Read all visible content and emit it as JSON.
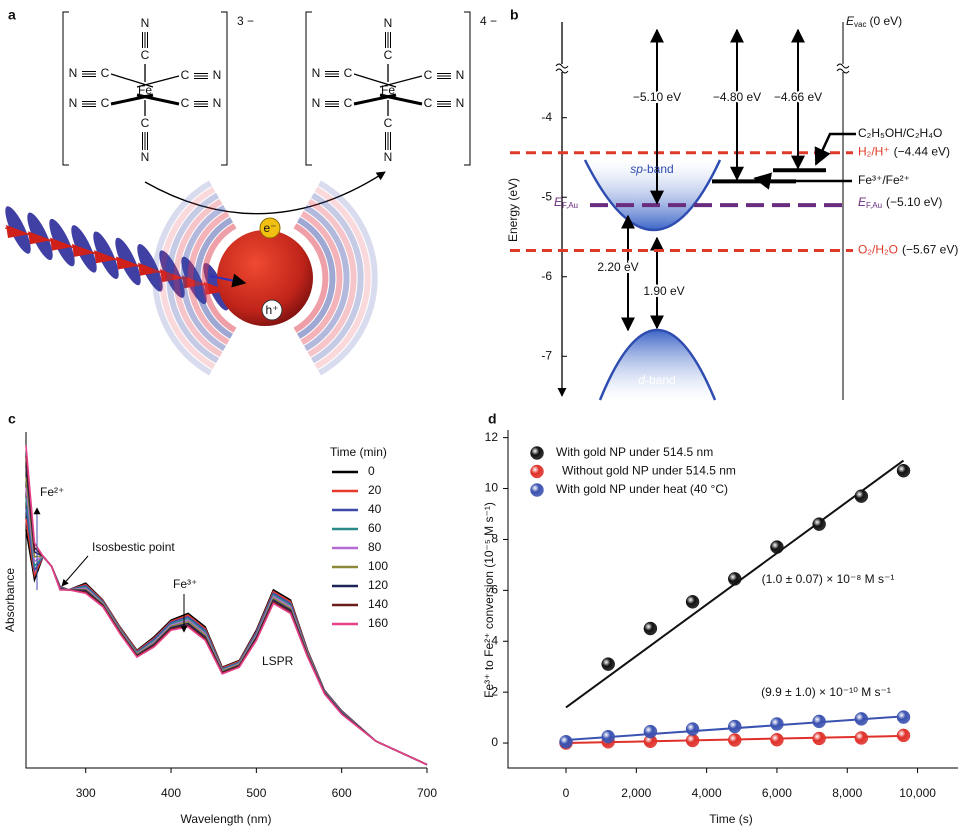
{
  "figure": {
    "panel_labels": [
      "a",
      "b",
      "c",
      "d"
    ]
  },
  "diagram": {
    "charges": [
      "3 −",
      "4 −"
    ],
    "nitrogen": "N",
    "carbon": "C",
    "iron": "Fe",
    "electron": "e⁻",
    "hole": "h⁺"
  },
  "chart_data": [
    {
      "type": "energy",
      "ylabel": "Energy (eV)",
      "ylim": [
        -7.55,
        -3.4
      ],
      "yticks": [
        -4,
        -5,
        -6,
        -7
      ],
      "vacuum": {
        "symbol": "E",
        "sub": "vac",
        "label": "(0 eV)"
      },
      "fermi": {
        "symbol": "E",
        "sub": "F,Au",
        "label": "(−5.10 eV)",
        "value": -5.1,
        "color": "#6a2c7e"
      },
      "redox": [
        {
          "name": "H₂/H⁺",
          "label": "(−4.44 eV)",
          "value": -4.44,
          "color": "#e03a2a"
        },
        {
          "name": "O₂/H₂O",
          "label": "(−5.67 eV)",
          "value": -5.67,
          "color": "#e03a2a"
        }
      ],
      "levels": [
        {
          "name": "C₂H₅OH/C₂H₄O",
          "value": -4.66
        },
        {
          "name": "Fe³⁺/Fe²⁺",
          "value": -4.8
        }
      ],
      "gaps": [
        {
          "value": -5.1,
          "label": "−5.10 eV"
        },
        {
          "value": -4.8,
          "label": "−4.80 eV"
        },
        {
          "value": -4.66,
          "label": "−4.66 eV"
        }
      ],
      "band_gaps": [
        {
          "value": 2.2,
          "label": "2.20 eV"
        },
        {
          "value": 1.9,
          "label": "1.90 eV"
        }
      ],
      "bands": {
        "sp": "sp",
        "d": "d",
        "suffix": "-band"
      }
    },
    {
      "type": "line",
      "xlabel": "Wavelength (nm)",
      "ylabel": "Absorbance",
      "legend_title": "Time (min)",
      "xlim": [
        230,
        700
      ],
      "ylim": [
        0,
        1
      ],
      "xticks": [
        300,
        400,
        500,
        600,
        700
      ],
      "x": [
        230,
        240,
        250,
        260,
        270,
        280,
        300,
        320,
        340,
        360,
        380,
        400,
        420,
        440,
        460,
        480,
        500,
        520,
        540,
        560,
        580,
        600,
        640,
        700
      ],
      "annotations": [
        "Fe²⁺",
        "Isosbestic point",
        "Fe³⁺",
        "LSPR"
      ],
      "series": [
        {
          "name": "0",
          "color": "#000000",
          "values": [
            0.71,
            0.56,
            0.63,
            0.6,
            0.54,
            0.53,
            0.55,
            0.5,
            0.42,
            0.35,
            0.39,
            0.44,
            0.46,
            0.42,
            0.3,
            0.32,
            0.41,
            0.53,
            0.5,
            0.35,
            0.23,
            0.17,
            0.08,
            0.01
          ]
        },
        {
          "name": "20",
          "color": "#e8392c",
          "values": [
            0.741,
            0.574,
            0.63,
            0.6,
            0.539,
            0.53,
            0.546,
            0.498,
            0.418,
            0.348,
            0.386,
            0.436,
            0.455,
            0.415,
            0.298,
            0.318,
            0.406,
            0.525,
            0.495,
            0.348,
            0.229,
            0.169,
            0.08,
            0.01
          ]
        },
        {
          "name": "40",
          "color": "#3f4aa8",
          "values": [
            0.773,
            0.588,
            0.63,
            0.6,
            0.538,
            0.53,
            0.543,
            0.495,
            0.415,
            0.345,
            0.383,
            0.433,
            0.45,
            0.41,
            0.295,
            0.315,
            0.403,
            0.52,
            0.49,
            0.345,
            0.228,
            0.168,
            0.08,
            0.01
          ]
        },
        {
          "name": "60",
          "color": "#2a8a8a",
          "values": [
            0.804,
            0.601,
            0.63,
            0.6,
            0.536,
            0.53,
            0.539,
            0.493,
            0.413,
            0.343,
            0.379,
            0.429,
            0.445,
            0.405,
            0.293,
            0.313,
            0.399,
            0.515,
            0.485,
            0.343,
            0.226,
            0.166,
            0.08,
            0.01
          ]
        },
        {
          "name": "80",
          "color": "#b36ad1",
          "values": [
            0.835,
            0.615,
            0.63,
            0.6,
            0.535,
            0.53,
            0.535,
            0.49,
            0.41,
            0.34,
            0.375,
            0.425,
            0.44,
            0.4,
            0.29,
            0.31,
            0.395,
            0.51,
            0.48,
            0.34,
            0.225,
            0.165,
            0.08,
            0.01
          ]
        },
        {
          "name": "100",
          "color": "#8c8a3a",
          "values": [
            0.866,
            0.629,
            0.63,
            0.6,
            0.534,
            0.53,
            0.531,
            0.488,
            0.408,
            0.338,
            0.371,
            0.421,
            0.435,
            0.395,
            0.288,
            0.308,
            0.391,
            0.505,
            0.475,
            0.338,
            0.224,
            0.164,
            0.08,
            0.01
          ]
        },
        {
          "name": "120",
          "color": "#1f2458",
          "values": [
            0.898,
            0.643,
            0.63,
            0.6,
            0.533,
            0.53,
            0.528,
            0.485,
            0.405,
            0.335,
            0.368,
            0.418,
            0.43,
            0.39,
            0.285,
            0.305,
            0.388,
            0.5,
            0.47,
            0.335,
            0.223,
            0.163,
            0.08,
            0.01
          ]
        },
        {
          "name": "140",
          "color": "#6b1d1d",
          "values": [
            0.929,
            0.656,
            0.63,
            0.6,
            0.531,
            0.53,
            0.524,
            0.483,
            0.403,
            0.333,
            0.364,
            0.414,
            0.425,
            0.385,
            0.283,
            0.303,
            0.384,
            0.495,
            0.465,
            0.333,
            0.221,
            0.161,
            0.08,
            0.01
          ]
        },
        {
          "name": "160",
          "color": "#e8408a",
          "values": [
            0.96,
            0.67,
            0.63,
            0.6,
            0.53,
            0.53,
            0.52,
            0.48,
            0.4,
            0.33,
            0.36,
            0.41,
            0.42,
            0.38,
            0.28,
            0.3,
            0.38,
            0.49,
            0.46,
            0.33,
            0.22,
            0.16,
            0.08,
            0.01
          ]
        }
      ]
    },
    {
      "type": "scatter",
      "xlabel": "Time (s)",
      "ylabel": "Fe³⁺ to Fe²⁺ conversion (10⁻⁵ M s⁻¹)",
      "xlim": [
        -1650,
        11150
      ],
      "ylim": [
        -0.98,
        12.3
      ],
      "xticks": [
        0,
        {
          "value": 2000,
          "label": "2,000"
        },
        {
          "value": 4000,
          "label": "4,000"
        },
        {
          "value": 6000,
          "label": "6,000"
        },
        {
          "value": 8000,
          "label": "8,000"
        },
        {
          "value": 10000,
          "label": "10,000"
        }
      ],
      "yticks": [
        0,
        2,
        4,
        6,
        8,
        10,
        12
      ],
      "series": [
        {
          "name": "With gold NP under 514.5 nm",
          "color": "#111111",
          "x": [
            1200,
            2400,
            3600,
            4800,
            6000,
            7200,
            8400,
            9600
          ],
          "values": [
            3.1,
            4.5,
            5.55,
            6.45,
            7.7,
            8.6,
            9.7,
            10.7
          ],
          "fit": {
            "x": [
              0,
              9600
            ],
            "y": [
              1.4,
              11.1
            ]
          },
          "rate": "(1.0 ± 0.07) × 10⁻⁸ M s⁻¹"
        },
        {
          "name": "Without gold NP under 514.5 nm",
          "color": "#e0302a",
          "x": [
            0,
            1200,
            2400,
            3600,
            4800,
            6000,
            7200,
            8400,
            9600
          ],
          "values": [
            0,
            0.05,
            0.07,
            0.1,
            0.12,
            0.13,
            0.18,
            0.2,
            0.3
          ],
          "fit": {
            "x": [
              0,
              9600
            ],
            "y": [
              0,
              0.28
            ]
          }
        },
        {
          "name": "With gold NP under heat (40 °C)",
          "color": "#3a52b0",
          "x": [
            0,
            1200,
            2400,
            3600,
            4800,
            6000,
            7200,
            8400,
            9600
          ],
          "values": [
            0.05,
            0.25,
            0.45,
            0.55,
            0.65,
            0.75,
            0.85,
            0.95,
            1.02
          ],
          "fit": {
            "x": [
              0,
              9600
            ],
            "y": [
              0.12,
              1.05
            ]
          },
          "rate": "(9.9 ± 1.0) × 10⁻¹⁰ M s⁻¹"
        }
      ]
    }
  ]
}
